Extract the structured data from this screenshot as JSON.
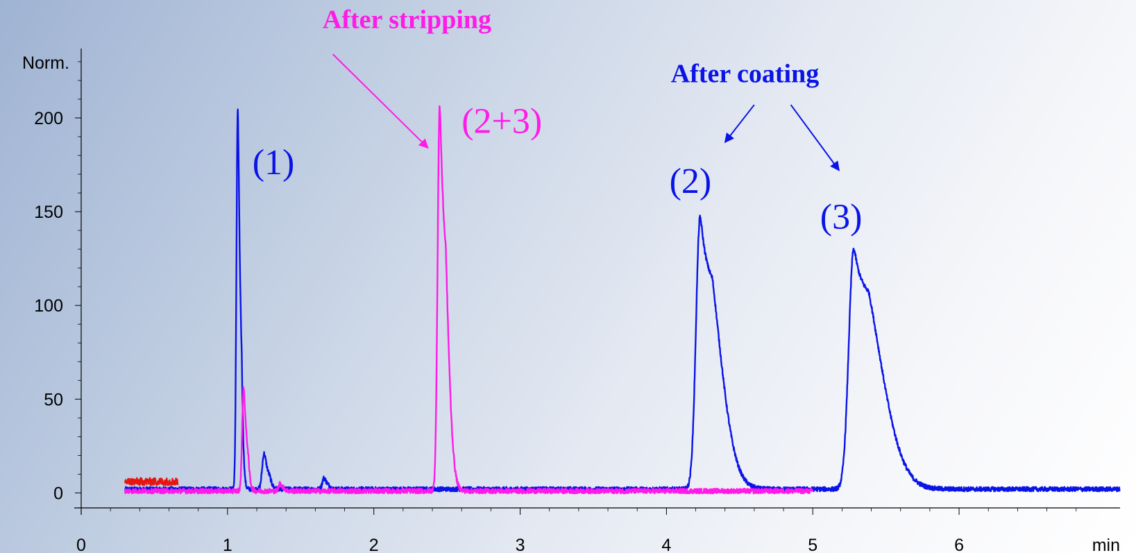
{
  "chart_data": {
    "type": "line",
    "title": "",
    "xlabel": "min",
    "ylabel": "Norm.",
    "xlim": [
      0,
      7.1
    ],
    "ylim": [
      -8,
      237
    ],
    "x_ticks": [
      0,
      1,
      2,
      3,
      4,
      5,
      6
    ],
    "y_ticks": [
      0,
      50,
      100,
      150,
      200
    ],
    "colors": {
      "after_coating": "#0a14e6",
      "after_stripping": "#ff1ae8",
      "third": "#e8150f"
    },
    "series": [
      {
        "color": "#0a14e6",
        "x_range": [
          0.3,
          7.1
        ],
        "baseline": 2,
        "noise": 1.2,
        "peaks": [
          {
            "rt": 1.07,
            "height": 202,
            "width": 0.009,
            "tail": 0.01
          },
          {
            "rt": 1.25,
            "height": 19,
            "width": 0.013,
            "tail": 0.015
          },
          {
            "rt": 1.66,
            "height": 6,
            "width": 0.012,
            "tail": 0.012
          },
          {
            "rt": 4.23,
            "height": 145,
            "width": 0.028,
            "tail": 0.09
          },
          {
            "rt": 5.28,
            "height": 128,
            "width": 0.034,
            "tail": 0.13
          }
        ]
      },
      {
        "color": "#ff1ae8",
        "x_range": [
          0.3,
          5.0
        ],
        "baseline": 1,
        "noise": 1.3,
        "peaks": [
          {
            "rt": 1.11,
            "height": 55,
            "width": 0.01,
            "tail": 0.012
          },
          {
            "rt": 1.36,
            "height": 4,
            "width": 0.01,
            "tail": 0.01
          },
          {
            "rt": 2.45,
            "height": 205,
            "width": 0.014,
            "tail": 0.03
          }
        ]
      },
      {
        "color": "#e8150f",
        "x_range": [
          0.3,
          0.66
        ],
        "baseline": 6,
        "noise": 2.0,
        "peaks": []
      }
    ],
    "annotations": [
      {
        "text": "After stripping",
        "color": "#ff1ae8",
        "style": "bold",
        "x": 1.65,
        "y": 248,
        "arrow_from": [
          1.72,
          234
        ],
        "arrow_to": [
          2.37,
          184
        ]
      },
      {
        "text": "(2+3)",
        "color": "#ff1ae8",
        "style": "number",
        "x": 2.6,
        "y": 192
      },
      {
        "text": "(1)",
        "color": "#0a14e6",
        "style": "number",
        "x": 1.17,
        "y": 170
      },
      {
        "text": "After coating",
        "color": "#0a14e6",
        "style": "bold",
        "x": 4.03,
        "y": 219
      },
      {
        "text": "(2)",
        "color": "#0a14e6",
        "style": "number",
        "x": 4.02,
        "y": 160
      },
      {
        "text": "(3)",
        "color": "#0a14e6",
        "style": "number",
        "x": 5.05,
        "y": 141
      }
    ],
    "coating_arrows": [
      {
        "from": [
          4.6,
          207
        ],
        "to": [
          4.4,
          187
        ]
      },
      {
        "from": [
          4.85,
          207
        ],
        "to": [
          5.18,
          172
        ]
      }
    ]
  }
}
